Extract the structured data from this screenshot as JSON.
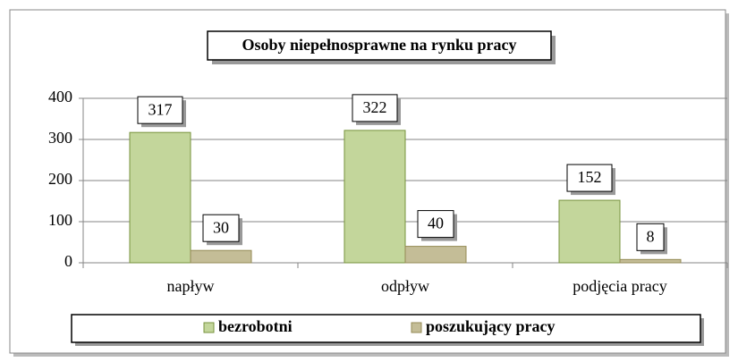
{
  "chart_data": {
    "type": "bar",
    "title": "Osoby niepełnosprawne na rynku pracy",
    "categories": [
      "napływ",
      "odpływ",
      "podjęcia pracy"
    ],
    "series": [
      {
        "name": "bezrobotni",
        "color": "#c3d69b",
        "values": [
          317,
          322,
          152
        ]
      },
      {
        "name": "poszukujący pracy",
        "color": "#c4bd97",
        "values": [
          30,
          40,
          8
        ]
      }
    ],
    "ylim": [
      0,
      400
    ],
    "yticks": [
      0,
      100,
      200,
      300,
      400
    ],
    "grid": true,
    "legend": "bottom"
  }
}
